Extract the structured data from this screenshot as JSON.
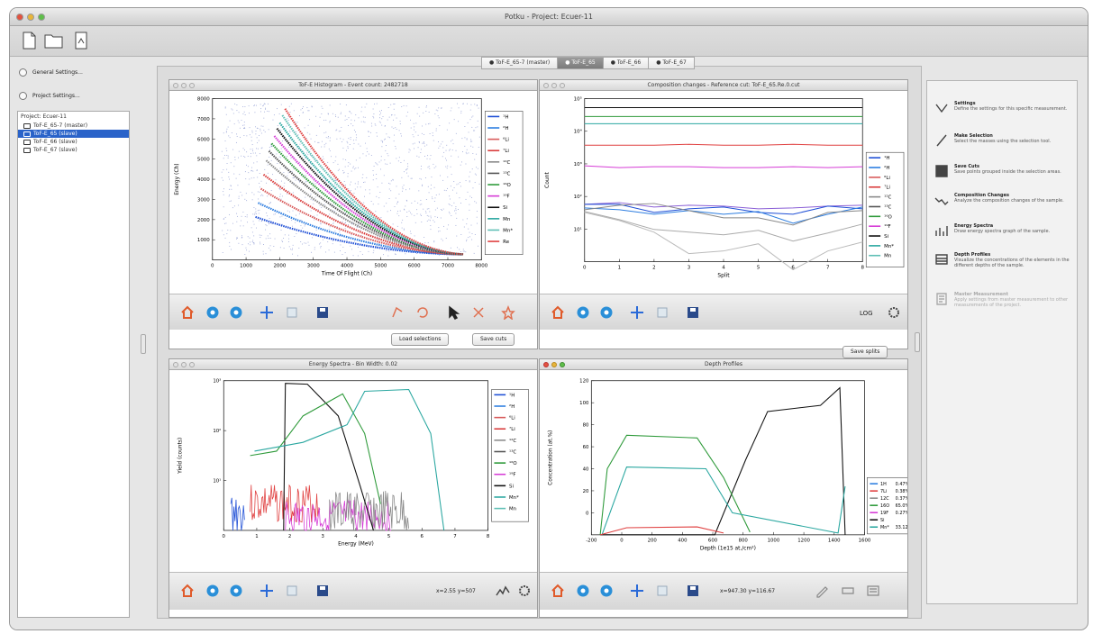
{
  "window": {
    "title": "Potku - Project: Ecuer-11"
  },
  "left": {
    "general_settings": "General Settings...",
    "project_settings": "Project Settings...",
    "tree": {
      "root": "Project: Ecuer-11",
      "items": [
        {
          "label": "ToF-E_65-7 (master)",
          "selected": false
        },
        {
          "label": "ToF-E_65 (slave)",
          "selected": true
        },
        {
          "label": "ToF-E_66 (slave)",
          "selected": false
        },
        {
          "label": "ToF-E_67 (slave)",
          "selected": false
        }
      ]
    }
  },
  "tabs": [
    "ToF-E_65-7 (master)",
    "ToF-E_65",
    "ToF-E_66",
    "ToF-E_67"
  ],
  "selected_tab": 1,
  "histogram": {
    "title": "ToF-E Histogram - Event count: 2482718",
    "xlabel": "Time Of Flight (Ch)",
    "ylabel": "Energy (Ch)",
    "xticks": [
      "0",
      "1000",
      "2000",
      "3000",
      "4000",
      "5000",
      "6000",
      "7000",
      "8000"
    ],
    "yticks": [
      "1000",
      "2000",
      "3000",
      "4000",
      "5000",
      "6000",
      "7000",
      "8000"
    ],
    "legend": [
      "¹H",
      "²H",
      "⁶Li",
      "⁷Li",
      "¹²C",
      "¹³C",
      "¹⁶O",
      "¹⁹F",
      "Si",
      "Mn",
      "Mn*",
      "Re"
    ],
    "load_selections": "Load selections",
    "save_cuts": "Save cuts"
  },
  "composition": {
    "title": "Composition changes - Reference cut: ToF-E_65.Re.0.cut",
    "xlabel": "Split",
    "ylabel": "Count",
    "xticks": [
      "0",
      "1",
      "2",
      "3",
      "4",
      "5",
      "6",
      "7",
      "8"
    ],
    "yticks": [
      "10¹",
      "10²",
      "10³",
      "10⁴",
      "10⁵"
    ],
    "legend": [
      "¹H",
      "²H",
      "⁶Li",
      "⁷Li",
      "¹²C",
      "¹³C",
      "¹⁶O",
      "¹⁹F",
      "Si",
      "Mn*",
      "Mn"
    ],
    "log_label": "LOG",
    "save_splits": "Save splits"
  },
  "energy": {
    "title": "Energy Spectra - Bin Width: 0.02",
    "xlabel": "Energy (MeV)",
    "ylabel": "Yield (counts)",
    "xticks": [
      "0",
      "1",
      "2",
      "3",
      "4",
      "5",
      "6",
      "7",
      "8"
    ],
    "yticks": [
      "10¹",
      "10²",
      "10³"
    ],
    "legend": [
      "¹H",
      "²H",
      "⁶Li",
      "⁷Li",
      "¹²C",
      "¹³C",
      "¹⁶O",
      "¹⁹F",
      "Si",
      "Mn*",
      "Mn"
    ],
    "coords": "x=2.55 y=507"
  },
  "depth": {
    "title": "Depth Profiles",
    "xlabel": "Depth (1e15 at./cm²)",
    "ylabel": "Concentration (at.%)",
    "xticks": [
      "-200",
      "0",
      "200",
      "400",
      "600",
      "800",
      "1000",
      "1200",
      "1400",
      "1600"
    ],
    "yticks": [
      "0",
      "20",
      "40",
      "60",
      "80",
      "100",
      "120"
    ],
    "legend": [
      {
        "name": "1H",
        "value": "0.47%"
      },
      {
        "name": "7Li",
        "value": "0.38%"
      },
      {
        "name": "12C",
        "value": "0.37%"
      },
      {
        "name": "16O",
        "value": "65.0%"
      },
      {
        "name": "19F",
        "value": "0.27%"
      },
      {
        "name": "Si",
        "value": ""
      },
      {
        "name": "Mn*",
        "value": "33.12%"
      }
    ],
    "coords": "x=947.30 y=116.67"
  },
  "right": {
    "items": [
      {
        "icon": "chevron-icon",
        "title": "Settings",
        "desc": "Define the settings for this specific measurement."
      },
      {
        "icon": "pen-icon",
        "title": "Make Selection",
        "desc": "Select the masses using the selection tool."
      },
      {
        "icon": "save-cuts-icon",
        "title": "Save Cuts",
        "desc": "Save points grouped inside the selection areas."
      },
      {
        "icon": "composition-icon",
        "title": "Composition Changes",
        "desc": "Analyze the composition changes of the sample."
      },
      {
        "icon": "energy-spectra-icon",
        "title": "Energy Spectra",
        "desc": "Draw energy spectra graph of the sample."
      },
      {
        "icon": "depth-profiles-icon",
        "title": "Depth Profiles",
        "desc": "Visualize the concentrations of the elements in the different depths of the sample."
      },
      {
        "icon": "master-icon",
        "title": "Master Measurement",
        "desc": "Apply settings from master measurement to other measurements of the project."
      }
    ]
  },
  "colors": {
    "series": [
      "#1f4fd6",
      "#2c7de0",
      "#d85a5a",
      "#d83a3a",
      "#8a8a8a",
      "#555555",
      "#2e9a3a",
      "#d63cd6",
      "#111111",
      "#2aa7a0",
      "#5fbfb5",
      "#e04040"
    ],
    "tab_selected": "#8a8a8a",
    "tree_selected": "#2a63c9"
  }
}
